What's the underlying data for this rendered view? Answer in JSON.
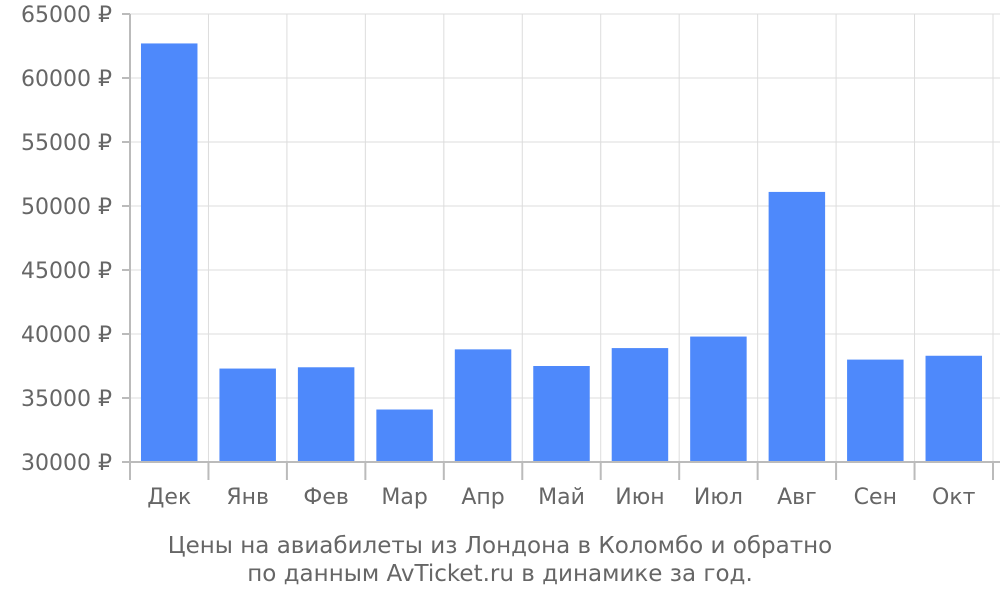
{
  "chart_data": {
    "type": "bar",
    "categories": [
      "Дек",
      "Янв",
      "Фев",
      "Мар",
      "Апр",
      "Май",
      "Июн",
      "Июл",
      "Авг",
      "Сен",
      "Окт"
    ],
    "values": [
      62700,
      37300,
      37400,
      34100,
      38800,
      37500,
      38900,
      39800,
      51100,
      38000,
      38300
    ],
    "y_ticks": [
      30000,
      35000,
      40000,
      45000,
      50000,
      55000,
      60000,
      65000
    ],
    "y_tick_labels": [
      "30000 ₽",
      "35000 ₽",
      "40000 ₽",
      "45000 ₽",
      "50000 ₽",
      "55000 ₽",
      "60000 ₽",
      "65000 ₽"
    ],
    "ylim": [
      30000,
      65000
    ],
    "grid": true,
    "bar_color": "#4e89fb",
    "title_lines": [
      "Цены на авиабилеты из Лондона в Коломбо и обратно",
      "по данным AvTicket.ru в динамике за год."
    ]
  }
}
